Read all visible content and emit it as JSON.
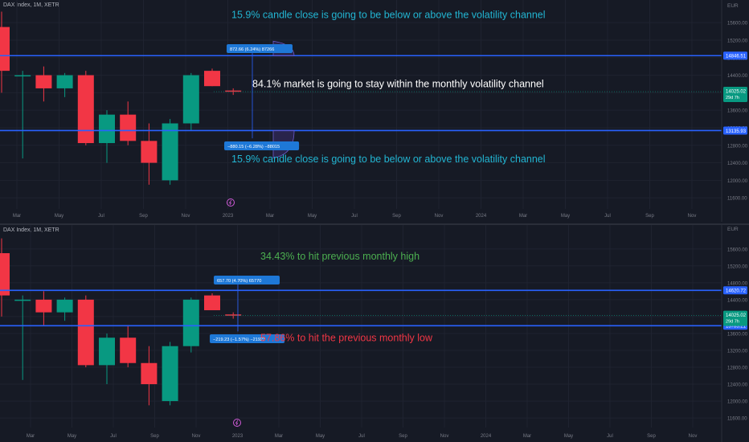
{
  "colors": {
    "bg": "#161a25",
    "grid": "#1f2330",
    "up": "#089981",
    "down": "#f23645",
    "line": "#2962ff",
    "axis_text": "#787b86",
    "cyan_text": "#22b5d2",
    "white_text": "#ffffff",
    "green_text": "#4caf50",
    "red_text": "#f23645",
    "label_box": "#1e78d7"
  },
  "currency": "EUR",
  "icon": "lightning-event-icon",
  "chart_data": [
    {
      "type": "candlestick",
      "title": "DAX Index, 1M, XETR",
      "x_ticks": [
        "Mar",
        "May",
        "Jul",
        "Sep",
        "Nov",
        "2023",
        "Mar",
        "May",
        "Jul",
        "Sep",
        "Nov",
        "2024",
        "Mar",
        "May",
        "Jul",
        "Sep",
        "Nov"
      ],
      "y_ticks": [
        15600,
        15200,
        14800,
        14400,
        14000,
        13600,
        13200,
        12800,
        12400,
        12000,
        11600
      ],
      "y_tick_labels": [
        "15600.00",
        "15200.00",
        "14800.00",
        "14400.00",
        "14000.00",
        "13600.00",
        "13200.00",
        "12800.00",
        "12400.00",
        "12000.00",
        "11600.00"
      ],
      "ylim": [
        11420,
        15860
      ],
      "candles": [
        {
          "o": 15500,
          "h": 15850,
          "l": 14000,
          "c": 14500
        },
        {
          "o": 14400,
          "h": 14500,
          "l": 12500,
          "c": 14400
        },
        {
          "o": 14400,
          "h": 14600,
          "l": 13800,
          "c": 14100
        },
        {
          "o": 14100,
          "h": 14450,
          "l": 13900,
          "c": 14400
        },
        {
          "o": 14400,
          "h": 14500,
          "l": 12800,
          "c": 12850
        },
        {
          "o": 12850,
          "h": 13600,
          "l": 12400,
          "c": 13500
        },
        {
          "o": 13500,
          "h": 13800,
          "l": 12800,
          "c": 12900
        },
        {
          "o": 12900,
          "h": 13300,
          "l": 11900,
          "c": 12400
        },
        {
          "o": 12000,
          "h": 13400,
          "l": 11900,
          "c": 13300
        },
        {
          "o": 13300,
          "h": 14450,
          "l": 13150,
          "c": 14400
        },
        {
          "o": 14500,
          "h": 14550,
          "l": 14150,
          "c": 14150
        },
        {
          "o": 14050,
          "h": 14100,
          "l": 13950,
          "c": 14025
        }
      ],
      "levels": [
        {
          "value": 14846.51,
          "label": "14846.51"
        },
        {
          "value": 13135.93,
          "label": "13135.93"
        }
      ],
      "current_price": {
        "value": 14025.02,
        "label": "14025.02",
        "countdown": "29d 7h"
      },
      "measure_labels": [
        {
          "text": "872.66 (6.24%) 87266",
          "anchor_value": 15100
        },
        {
          "text": "−880.15 (−6.28%) −88015",
          "anchor_value": 12960
        }
      ],
      "annotations": [
        {
          "text": "15.9% candle close is going to be below or above the volatility channel",
          "value": 15700,
          "color": "cyan_text"
        },
        {
          "text": "84.1% market is going to stay within the monthly volatility channel",
          "value": 14130,
          "color": "white_text"
        },
        {
          "text": "15.9% candle close is going to be below or above the volatility channel",
          "value": 12410,
          "color": "cyan_text"
        }
      ]
    },
    {
      "type": "candlestick",
      "title": "DAX Index, 1M, XETR",
      "x_ticks": [
        "Mar",
        "May",
        "Jul",
        "Sep",
        "Nov",
        "2023",
        "Mar",
        "May",
        "Jul",
        "Sep",
        "Nov",
        "2024",
        "Mar",
        "May",
        "Jul",
        "Sep",
        "Nov"
      ],
      "y_ticks": [
        15600,
        15200,
        14800,
        14400,
        14000,
        13600,
        13200,
        12800,
        12400,
        12000,
        11600
      ],
      "y_tick_labels": [
        "15600.00",
        "15200.00",
        "14800.00",
        "14400.00",
        "14000.00",
        "13600.00",
        "13200.00",
        "12800.00",
        "12400.00",
        "12000.00",
        "11600.00"
      ],
      "ylim": [
        11450,
        15900
      ],
      "candles": [
        {
          "o": 15500,
          "h": 15850,
          "l": 14000,
          "c": 14500
        },
        {
          "o": 14400,
          "h": 14500,
          "l": 12500,
          "c": 14400
        },
        {
          "o": 14400,
          "h": 14600,
          "l": 13800,
          "c": 14100
        },
        {
          "o": 14100,
          "h": 14450,
          "l": 13900,
          "c": 14400
        },
        {
          "o": 14400,
          "h": 14500,
          "l": 12800,
          "c": 12850
        },
        {
          "o": 12850,
          "h": 13600,
          "l": 12400,
          "c": 13500
        },
        {
          "o": 13500,
          "h": 13800,
          "l": 12800,
          "c": 12900
        },
        {
          "o": 12900,
          "h": 13300,
          "l": 11900,
          "c": 12400
        },
        {
          "o": 12000,
          "h": 13400,
          "l": 11900,
          "c": 13300
        },
        {
          "o": 13300,
          "h": 14450,
          "l": 13150,
          "c": 14400
        },
        {
          "o": 14500,
          "h": 14550,
          "l": 14150,
          "c": 14150
        },
        {
          "o": 14050,
          "h": 14100,
          "l": 13950,
          "c": 14025
        }
      ],
      "levels": [
        {
          "value": 14620.72,
          "label": "14620.72"
        },
        {
          "value": 13783.21,
          "label": "13783.21"
        }
      ],
      "current_price": {
        "value": 14025.02,
        "label": "14025.02",
        "countdown": "29d 7h"
      },
      "measure_labels": [
        {
          "text": "657.70 (4.70%) 65770",
          "anchor_value": 14810
        },
        {
          "text": "−219.23 (−1.57%) −21923",
          "anchor_value": 13650
        }
      ],
      "annotations": [
        {
          "text": "34.43% to hit previous monthly high",
          "value": 15350,
          "color": "green_text"
        },
        {
          "text": "57.86% to hit the previous monthly low",
          "value": 13420,
          "color": "red_text"
        }
      ]
    }
  ]
}
